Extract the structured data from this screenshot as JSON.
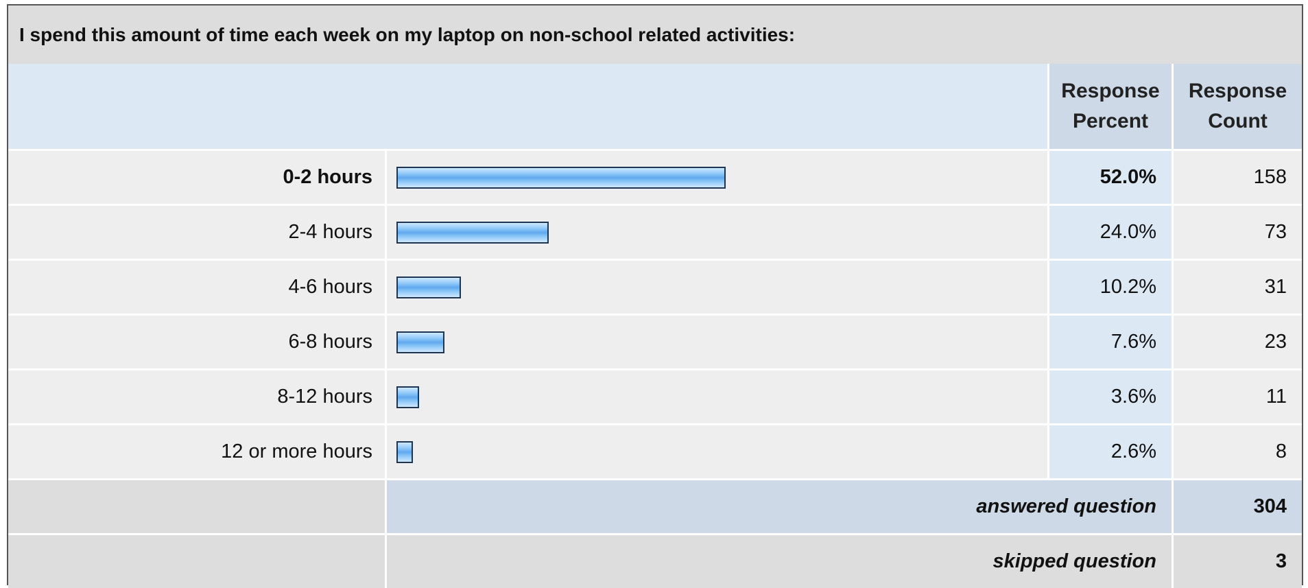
{
  "title": "I spend this amount of time each week on my laptop on non-school related activities:",
  "headers": {
    "percent": [
      "Response",
      "Percent"
    ],
    "count": [
      "Response",
      "Count"
    ]
  },
  "chart_data": {
    "type": "bar",
    "orientation": "horizontal",
    "title": "I spend this amount of time each week on my laptop on non-school related activities:",
    "categories": [
      "0-2 hours",
      "2-4 hours",
      "4-6 hours",
      "6-8 hours",
      "8-12 hours",
      "12 or more hours"
    ],
    "values": [
      52.0,
      24.0,
      10.2,
      7.6,
      3.6,
      2.6
    ],
    "percent_labels": [
      "52.0%",
      "24.0%",
      "10.2%",
      "7.6%",
      "3.6%",
      "2.6%"
    ],
    "counts": [
      158,
      73,
      31,
      23,
      11,
      8
    ],
    "bar_color": "#8cc6f7",
    "bar_border_color": "#1d3550"
  },
  "summary": {
    "answered_label": "answered question",
    "answered_value": "304",
    "skipped_label": "skipped question",
    "skipped_value": "3"
  }
}
